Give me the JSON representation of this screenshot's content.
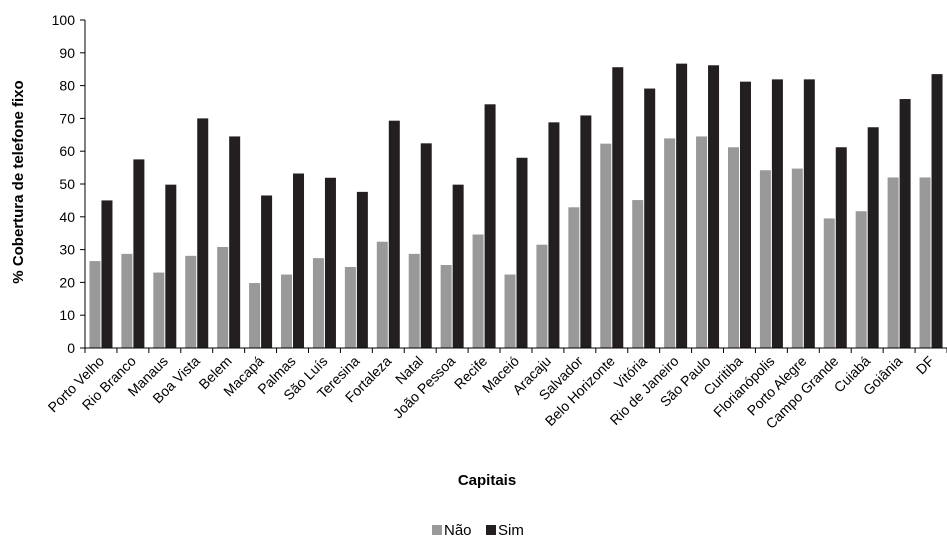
{
  "chart_data": {
    "type": "bar",
    "title": "",
    "xlabel": "Capitais",
    "ylabel": "% Cobertura de telefone fixo",
    "ylim": [
      0,
      100
    ],
    "yticks": [
      0,
      10,
      20,
      30,
      40,
      50,
      60,
      70,
      80,
      90,
      100
    ],
    "grid": false,
    "legend_position": "bottom",
    "categories": [
      "Porto Velho",
      "Rio Branco",
      "Manaus",
      "Boa Vista",
      "Belem",
      "Macapá",
      "Palmas",
      "São Luís",
      "Teresina",
      "Fortaleza",
      "Natal",
      "João Pessoa",
      "Recife",
      "Maceió",
      "Aracaju",
      "Salvador",
      "Belo Horizonte",
      "Vitória",
      "Rio de Janeiro",
      "São Paulo",
      "Curitiba",
      "Florianópolis",
      "Porto Alegre",
      "Campo Grande",
      "Cuiabá",
      "Goiânia",
      "DF"
    ],
    "series": [
      {
        "name": "Não",
        "color": "#999999",
        "values": [
          26.5,
          28.7,
          23.0,
          28.1,
          30.8,
          19.8,
          22.4,
          27.4,
          24.7,
          32.4,
          28.7,
          25.3,
          34.6,
          22.4,
          31.5,
          42.9,
          62.3,
          45.1,
          63.9,
          64.5,
          61.2,
          54.2,
          54.7,
          39.5,
          41.7,
          52.0,
          52.0
        ]
      },
      {
        "name": "Sim",
        "color": "#231f20",
        "values": [
          45.0,
          57.5,
          49.8,
          70.0,
          64.5,
          46.5,
          53.2,
          51.9,
          47.6,
          69.3,
          62.4,
          49.8,
          74.3,
          58.0,
          68.8,
          70.9,
          85.6,
          79.1,
          86.7,
          86.2,
          81.2,
          81.9,
          81.9,
          61.2,
          67.3,
          75.9,
          83.5
        ]
      }
    ]
  }
}
